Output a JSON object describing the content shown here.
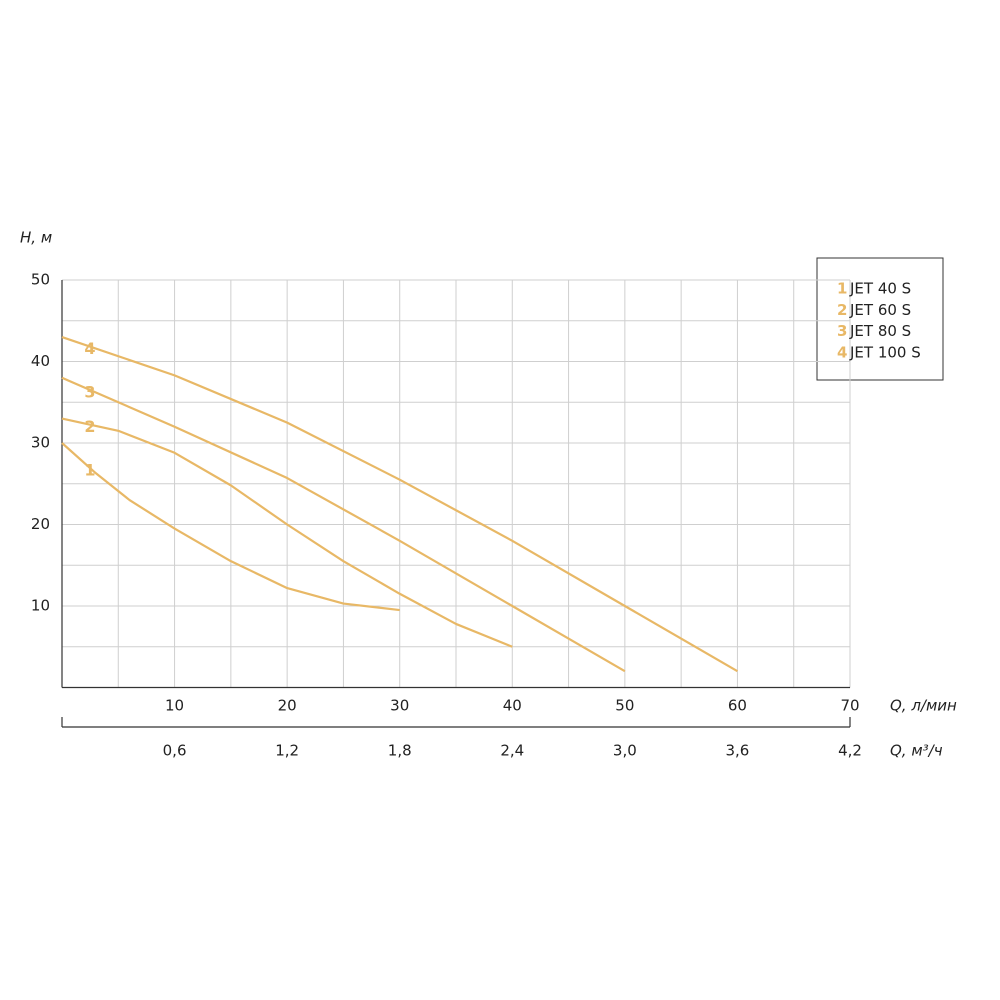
{
  "chart_data": {
    "type": "line",
    "ylabel": "H, м",
    "xlabel": "Q, л/мин",
    "x2label": "Q, м³/ч",
    "xlim": [
      0,
      70
    ],
    "ylim": [
      0,
      50
    ],
    "xticks": [
      10,
      20,
      30,
      40,
      50,
      60,
      70
    ],
    "yticks": [
      10,
      20,
      30,
      40,
      50
    ],
    "xgrid": [
      5,
      10,
      15,
      20,
      25,
      30,
      35,
      40,
      45,
      50,
      55,
      60,
      65,
      70
    ],
    "ygrid": [
      5,
      10,
      15,
      20,
      25,
      30,
      35,
      40,
      45,
      50
    ],
    "x2lim": [
      0,
      4.2
    ],
    "x2ticks": [
      {
        "value": 0.6,
        "label": "0,6"
      },
      {
        "value": 1.2,
        "label": "1,2"
      },
      {
        "value": 1.8,
        "label": "1,8"
      },
      {
        "value": 2.4,
        "label": "2,4"
      },
      {
        "value": 3.0,
        "label": "3,0"
      },
      {
        "value": 3.6,
        "label": "3,6"
      },
      {
        "value": 4.2,
        "label": "4,2"
      }
    ],
    "grid": true,
    "legend": "upper right",
    "series": [
      {
        "label": "1",
        "name": "JET 40 S",
        "color": "#e8b866",
        "x": [
          0,
          3,
          6,
          10,
          15,
          20,
          25,
          30
        ],
        "values": [
          30,
          26.3,
          23,
          19.5,
          15.5,
          12.2,
          10.3,
          9.5
        ]
      },
      {
        "label": "2",
        "name": "JET 60 S",
        "color": "#e8b866",
        "x": [
          0,
          5,
          10,
          15,
          20,
          25,
          30,
          35,
          40
        ],
        "values": [
          33,
          31.5,
          28.8,
          24.8,
          20,
          15.5,
          11.5,
          7.8,
          5
        ]
      },
      {
        "label": "3",
        "name": "JET 80 S",
        "color": "#e8b866",
        "x": [
          0,
          10,
          20,
          30,
          40,
          50
        ],
        "values": [
          38,
          32,
          25.7,
          18,
          10,
          2
        ]
      },
      {
        "label": "4",
        "name": "JET 100 S",
        "color": "#e8b866",
        "x": [
          0,
          10,
          20,
          30,
          40,
          50,
          60
        ],
        "values": [
          43,
          38.3,
          32.5,
          25.5,
          18,
          10,
          2
        ]
      }
    ]
  }
}
